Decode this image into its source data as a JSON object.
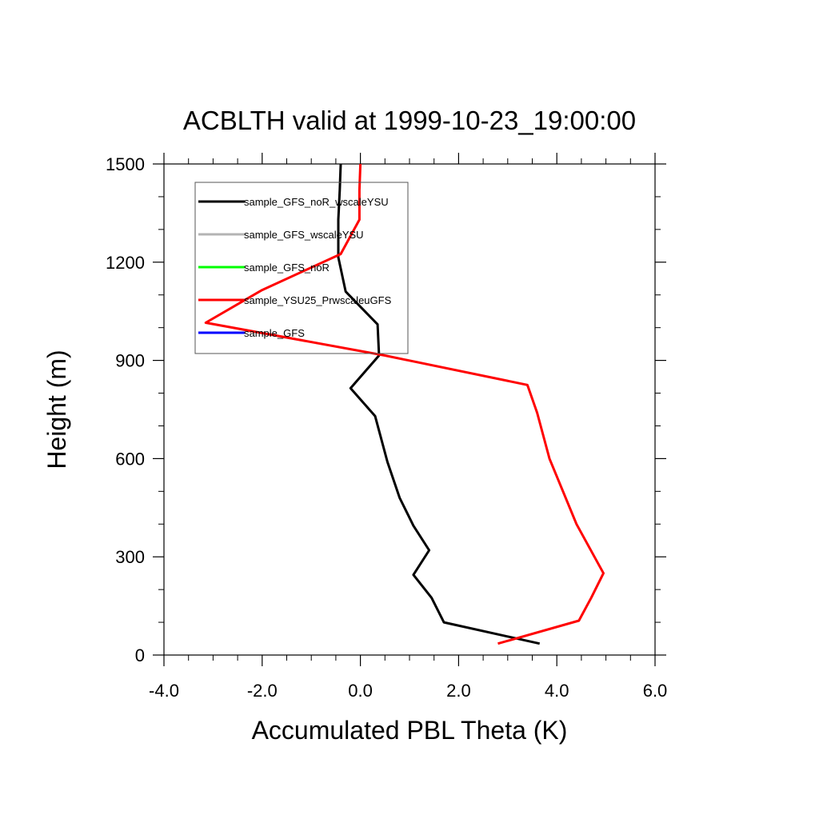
{
  "chart_data": {
    "type": "line",
    "title": "ACBLTH valid at 1999-10-23_19:00:00",
    "xlabel": "Accumulated PBL Theta (K)",
    "ylabel": "Height (m)",
    "xlim": [
      -4,
      6
    ],
    "ylim": [
      0,
      1500
    ],
    "xticks": [
      -4,
      -2,
      0,
      2,
      4,
      6
    ],
    "xtick_labels": [
      "-4.0",
      "-2.0",
      "0.0",
      "2.0",
      "4.0",
      "6.0"
    ],
    "yticks": [
      0,
      300,
      600,
      900,
      1200,
      1500
    ],
    "ytick_labels": [
      "0",
      "300",
      "600",
      "900",
      "1200",
      "1500"
    ],
    "grid": false,
    "legend_position": "top-left",
    "legend": [
      {
        "name": "sample_GFS_noR_wscaleYSU",
        "color": "#000000"
      },
      {
        "name": "sample_GFS_wscaleYSU",
        "color": "#b4b4b4"
      },
      {
        "name": "sample_GFS_noR",
        "color": "#00ff00"
      },
      {
        "name": "sample_YSU25_PrwscaleuGFS",
        "color": "#ff0000"
      },
      {
        "name": "sample_GFS",
        "color": "#0000ff"
      }
    ],
    "series": [
      {
        "name": "sample_GFS_noR_wscaleYSU",
        "color": "#000000",
        "x": [
          3.65,
          1.7,
          1.45,
          1.08,
          1.4,
          1.08,
          0.8,
          0.55,
          0.3,
          -0.2,
          0.38,
          0.35,
          -0.3,
          -0.45,
          -0.45,
          -0.42,
          -0.4
        ],
        "y": [
          35,
          100,
          175,
          245,
          320,
          395,
          480,
          590,
          730,
          815,
          915,
          1010,
          1110,
          1215,
          1330,
          1420,
          1500
        ]
      },
      {
        "name": "sample_YSU25_PrwscaleuGFS",
        "color": "#ff0000",
        "x": [
          2.8,
          4.45,
          4.7,
          4.95,
          4.4,
          3.85,
          3.6,
          3.4,
          0.5,
          -3.15,
          -2.0,
          -0.4,
          -0.02,
          -0.02,
          0.0
        ],
        "y": [
          35,
          105,
          175,
          250,
          400,
          600,
          740,
          825,
          915,
          1015,
          1115,
          1225,
          1330,
          1420,
          1500
        ]
      }
    ]
  }
}
